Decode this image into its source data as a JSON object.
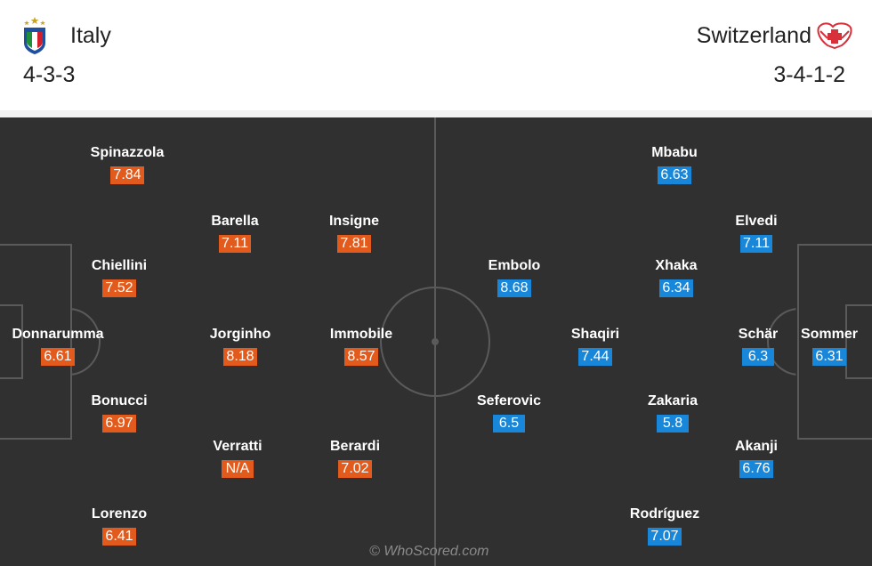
{
  "home": {
    "name": "Italy",
    "formation": "4-3-3",
    "crest_icon": "italy-crest-icon",
    "color": "#e25a1c",
    "players": [
      {
        "name": "Spinazzola",
        "rating": "7.84"
      },
      {
        "name": "Barella",
        "rating": "7.11"
      },
      {
        "name": "Insigne",
        "rating": "7.81"
      },
      {
        "name": "Chiellini",
        "rating": "7.52"
      },
      {
        "name": "Donnarumma",
        "rating": "6.61"
      },
      {
        "name": "Jorginho",
        "rating": "8.18"
      },
      {
        "name": "Immobile",
        "rating": "8.57"
      },
      {
        "name": "Bonucci",
        "rating": "6.97"
      },
      {
        "name": "Verratti",
        "rating": "N/A"
      },
      {
        "name": "Berardi",
        "rating": "7.02"
      },
      {
        "name": "Lorenzo",
        "rating": "6.41"
      }
    ]
  },
  "away": {
    "name": "Switzerland",
    "formation": "3-4-1-2",
    "crest_icon": "switzerland-crest-icon",
    "color": "#1886d9",
    "players": [
      {
        "name": "Mbabu",
        "rating": "6.63"
      },
      {
        "name": "Elvedi",
        "rating": "7.11"
      },
      {
        "name": "Embolo",
        "rating": "8.68"
      },
      {
        "name": "Xhaka",
        "rating": "6.34"
      },
      {
        "name": "Shaqiri",
        "rating": "7.44"
      },
      {
        "name": "Schär",
        "rating": "6.3"
      },
      {
        "name": "Sommer",
        "rating": "6.31"
      },
      {
        "name": "Seferovic",
        "rating": "6.5"
      },
      {
        "name": "Zakaria",
        "rating": "5.8"
      },
      {
        "name": "Akanji",
        "rating": "6.76"
      },
      {
        "name": "Rodríguez",
        "rating": "7.07"
      }
    ]
  },
  "watermark": "© WhoScored.com"
}
